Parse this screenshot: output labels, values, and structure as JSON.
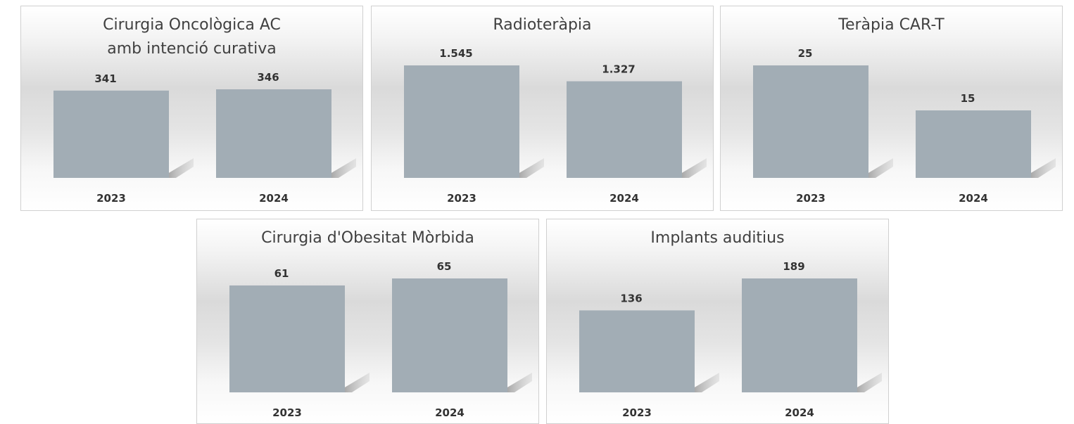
{
  "chart_data": [
    {
      "type": "bar",
      "title": "Cirurgia Oncològica AC amb intenció curativa",
      "categories": [
        "2023",
        "2024"
      ],
      "values": [
        341,
        346
      ],
      "color": "#a2adb5"
    },
    {
      "type": "bar",
      "title": "Radioteràpia",
      "categories": [
        "2023",
        "2024"
      ],
      "values": [
        1545,
        1327
      ],
      "value_labels": [
        "1.545",
        "1.327"
      ],
      "color": "#a2adb5"
    },
    {
      "type": "bar",
      "title": "Teràpia CAR-T",
      "categories": [
        "2023",
        "2024"
      ],
      "values": [
        25,
        15
      ],
      "color": "#a2adb5"
    },
    {
      "type": "bar",
      "title": "Cirurgia d'Obesitat Mòrbida",
      "categories": [
        "2023",
        "2024"
      ],
      "values": [
        61,
        65
      ],
      "color": "#a2adb5"
    },
    {
      "type": "bar",
      "title": "Implants auditius",
      "categories": [
        "2023",
        "2024"
      ],
      "values": [
        136,
        189
      ],
      "color": "#a2adb5"
    }
  ]
}
